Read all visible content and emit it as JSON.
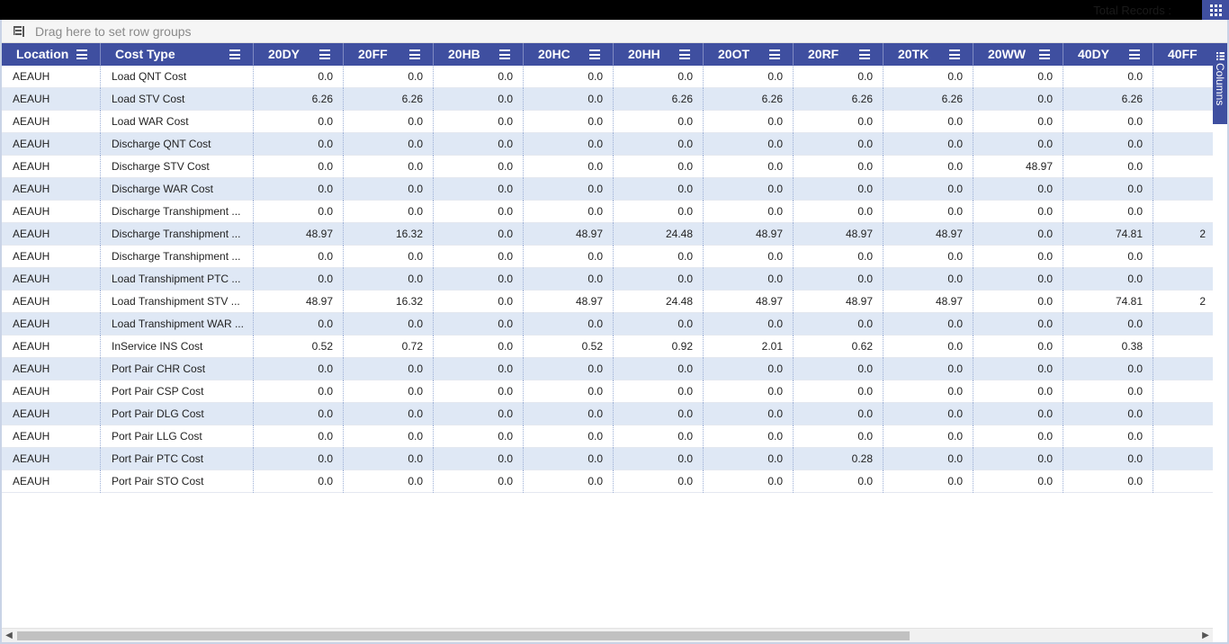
{
  "topbar": {
    "total_records_label": "Total Records :"
  },
  "group_panel": {
    "placeholder": "Drag here to set row groups"
  },
  "side_panel": {
    "columns_label": "Columns"
  },
  "table": {
    "columns": [
      "Location",
      "Cost Type",
      "20DY",
      "20FF",
      "20HB",
      "20HC",
      "20HH",
      "20OT",
      "20RF",
      "20TK",
      "20WW",
      "40DY",
      "40FF"
    ],
    "rows": [
      [
        "AEAUH",
        "Load QNT Cost",
        "0.0",
        "0.0",
        "0.0",
        "0.0",
        "0.0",
        "0.0",
        "0.0",
        "0.0",
        "0.0",
        "0.0",
        ""
      ],
      [
        "AEAUH",
        "Load STV Cost",
        "6.26",
        "6.26",
        "0.0",
        "0.0",
        "6.26",
        "6.26",
        "6.26",
        "6.26",
        "0.0",
        "6.26",
        ""
      ],
      [
        "AEAUH",
        "Load WAR Cost",
        "0.0",
        "0.0",
        "0.0",
        "0.0",
        "0.0",
        "0.0",
        "0.0",
        "0.0",
        "0.0",
        "0.0",
        ""
      ],
      [
        "AEAUH",
        "Discharge QNT Cost",
        "0.0",
        "0.0",
        "0.0",
        "0.0",
        "0.0",
        "0.0",
        "0.0",
        "0.0",
        "0.0",
        "0.0",
        ""
      ],
      [
        "AEAUH",
        "Discharge STV Cost",
        "0.0",
        "0.0",
        "0.0",
        "0.0",
        "0.0",
        "0.0",
        "0.0",
        "0.0",
        "48.97",
        "0.0",
        ""
      ],
      [
        "AEAUH",
        "Discharge WAR Cost",
        "0.0",
        "0.0",
        "0.0",
        "0.0",
        "0.0",
        "0.0",
        "0.0",
        "0.0",
        "0.0",
        "0.0",
        ""
      ],
      [
        "AEAUH",
        "Discharge Transhipment ...",
        "0.0",
        "0.0",
        "0.0",
        "0.0",
        "0.0",
        "0.0",
        "0.0",
        "0.0",
        "0.0",
        "0.0",
        ""
      ],
      [
        "AEAUH",
        "Discharge Transhipment ...",
        "48.97",
        "16.32",
        "0.0",
        "48.97",
        "24.48",
        "48.97",
        "48.97",
        "48.97",
        "0.0",
        "74.81",
        "2"
      ],
      [
        "AEAUH",
        "Discharge Transhipment ...",
        "0.0",
        "0.0",
        "0.0",
        "0.0",
        "0.0",
        "0.0",
        "0.0",
        "0.0",
        "0.0",
        "0.0",
        ""
      ],
      [
        "AEAUH",
        "Load Transhipment PTC ...",
        "0.0",
        "0.0",
        "0.0",
        "0.0",
        "0.0",
        "0.0",
        "0.0",
        "0.0",
        "0.0",
        "0.0",
        ""
      ],
      [
        "AEAUH",
        "Load Transhipment STV ...",
        "48.97",
        "16.32",
        "0.0",
        "48.97",
        "24.48",
        "48.97",
        "48.97",
        "48.97",
        "0.0",
        "74.81",
        "2"
      ],
      [
        "AEAUH",
        "Load Transhipment WAR ...",
        "0.0",
        "0.0",
        "0.0",
        "0.0",
        "0.0",
        "0.0",
        "0.0",
        "0.0",
        "0.0",
        "0.0",
        ""
      ],
      [
        "AEAUH",
        "InService INS Cost",
        "0.52",
        "0.72",
        "0.0",
        "0.52",
        "0.92",
        "2.01",
        "0.62",
        "0.0",
        "0.0",
        "0.38",
        ""
      ],
      [
        "AEAUH",
        "Port Pair CHR Cost",
        "0.0",
        "0.0",
        "0.0",
        "0.0",
        "0.0",
        "0.0",
        "0.0",
        "0.0",
        "0.0",
        "0.0",
        ""
      ],
      [
        "AEAUH",
        "Port Pair CSP Cost",
        "0.0",
        "0.0",
        "0.0",
        "0.0",
        "0.0",
        "0.0",
        "0.0",
        "0.0",
        "0.0",
        "0.0",
        ""
      ],
      [
        "AEAUH",
        "Port Pair DLG Cost",
        "0.0",
        "0.0",
        "0.0",
        "0.0",
        "0.0",
        "0.0",
        "0.0",
        "0.0",
        "0.0",
        "0.0",
        ""
      ],
      [
        "AEAUH",
        "Port Pair LLG Cost",
        "0.0",
        "0.0",
        "0.0",
        "0.0",
        "0.0",
        "0.0",
        "0.0",
        "0.0",
        "0.0",
        "0.0",
        ""
      ],
      [
        "AEAUH",
        "Port Pair PTC Cost",
        "0.0",
        "0.0",
        "0.0",
        "0.0",
        "0.0",
        "0.0",
        "0.28",
        "0.0",
        "0.0",
        "0.0",
        ""
      ],
      [
        "AEAUH",
        "Port Pair STO Cost",
        "0.0",
        "0.0",
        "0.0",
        "0.0",
        "0.0",
        "0.0",
        "0.0",
        "0.0",
        "0.0",
        "0.0",
        ""
      ]
    ]
  },
  "colors": {
    "header_bg": "#3f4fa0",
    "alt_row_bg": "#dfe8f5",
    "topbar_bg": "#000000"
  },
  "icons": [
    "apps-grid-icon",
    "row-group-icon",
    "column-menu-icon",
    "columns-panel-icon",
    "scroll-left-icon",
    "scroll-right-icon"
  ]
}
